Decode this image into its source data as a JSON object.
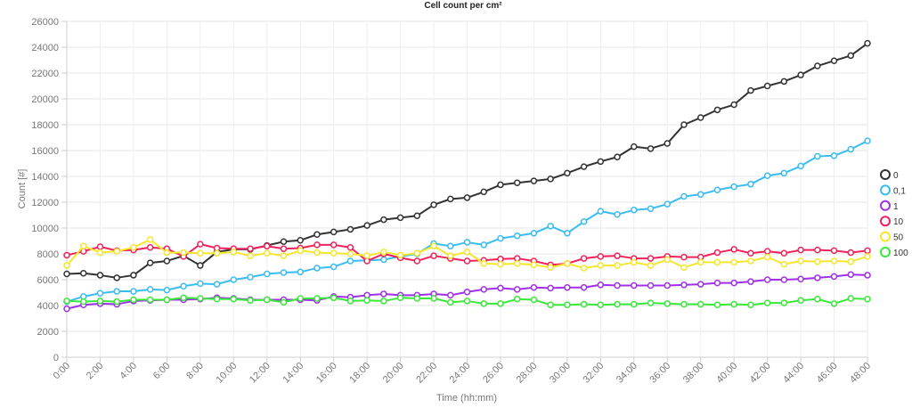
{
  "chart_data": {
    "type": "line",
    "title": "Cell count per cm²",
    "xlabel": "Time (hh:mm)",
    "ylabel": "Count [#]",
    "ylim": [
      0,
      26000
    ],
    "yticks": [
      0,
      2000,
      4000,
      6000,
      8000,
      10000,
      12000,
      14000,
      16000,
      18000,
      20000,
      22000,
      24000,
      26000
    ],
    "ytick_labels": [
      "0",
      "2000",
      "4000",
      "6000",
      "8000",
      "10000",
      "12000",
      "14000",
      "16000",
      "18000",
      "20000",
      "22000",
      "24000",
      "26000"
    ],
    "xlim": [
      0,
      48
    ],
    "xticks": [
      0,
      2,
      4,
      6,
      8,
      10,
      12,
      14,
      16,
      18,
      20,
      22,
      24,
      26,
      28,
      30,
      32,
      34,
      36,
      38,
      40,
      42,
      44,
      46,
      48
    ],
    "xtick_labels": [
      "0:00",
      "2:00",
      "4:00",
      "6:00",
      "8:00",
      "10:00",
      "12:00",
      "14:00",
      "16:00",
      "18:00",
      "20:00",
      "22:00",
      "24:00",
      "26:00",
      "28:00",
      "30:00",
      "32:00",
      "34:00",
      "36:00",
      "38:00",
      "40:00",
      "42:00",
      "44:00",
      "46:00",
      "48:00"
    ],
    "x": [
      0,
      1,
      2,
      3,
      4,
      5,
      6,
      7,
      8,
      9,
      10,
      11,
      12,
      13,
      14,
      15,
      16,
      17,
      18,
      19,
      20,
      21,
      22,
      23,
      24,
      25,
      26,
      27,
      28,
      29,
      30,
      31,
      32,
      33,
      34,
      35,
      36,
      37,
      38,
      39,
      40,
      41,
      42,
      43,
      44,
      45,
      46,
      47,
      48
    ],
    "grid": true,
    "legend_position": "right",
    "series": [
      {
        "name": "0",
        "color": "#333333",
        "values": [
          6450,
          6500,
          6350,
          6150,
          6350,
          7300,
          7450,
          7850,
          7100,
          8150,
          8350,
          8350,
          8650,
          8950,
          9050,
          9500,
          9700,
          9900,
          10200,
          10650,
          10800,
          10950,
          11800,
          12250,
          12350,
          12800,
          13350,
          13500,
          13650,
          13800,
          14250,
          14750,
          15150,
          15500,
          16300,
          16150,
          16550,
          18000,
          18550,
          19150,
          19550,
          20650,
          21000,
          21350,
          21850,
          22550,
          22950,
          23350,
          24300
        ]
      },
      {
        "name": "0,1",
        "color": "#3bbcf0",
        "values": [
          4300,
          4700,
          4950,
          5100,
          5100,
          5250,
          5200,
          5500,
          5700,
          5650,
          6000,
          6200,
          6450,
          6550,
          6600,
          6900,
          7000,
          7450,
          7500,
          7550,
          7800,
          8000,
          8800,
          8600,
          8900,
          8700,
          9200,
          9400,
          9600,
          10150,
          9600,
          10500,
          11300,
          11050,
          11400,
          11500,
          11850,
          12450,
          12600,
          12950,
          13200,
          13400,
          14050,
          14250,
          14800,
          15550,
          15600,
          16100,
          16750
        ]
      },
      {
        "name": "1",
        "color": "#a030e8",
        "values": [
          3750,
          4050,
          4150,
          4100,
          4350,
          4400,
          4450,
          4450,
          4500,
          4600,
          4550,
          4450,
          4450,
          4450,
          4450,
          4400,
          4700,
          4650,
          4800,
          4900,
          4800,
          4800,
          4900,
          4800,
          5050,
          5250,
          5350,
          5250,
          5400,
          5350,
          5400,
          5400,
          5600,
          5550,
          5550,
          5550,
          5550,
          5600,
          5650,
          5750,
          5750,
          5850,
          6000,
          6000,
          6050,
          6150,
          6250,
          6400,
          6350
        ]
      },
      {
        "name": "10",
        "color": "#f0225c",
        "values": [
          7900,
          8200,
          8550,
          8250,
          8300,
          8500,
          8400,
          7800,
          8750,
          8450,
          8400,
          8400,
          8600,
          8400,
          8450,
          8700,
          8700,
          8500,
          7450,
          8000,
          7700,
          7450,
          7850,
          7650,
          7450,
          7500,
          7600,
          7650,
          7450,
          7150,
          7250,
          7650,
          7800,
          7850,
          7650,
          7650,
          7800,
          7750,
          7750,
          8100,
          8350,
          8050,
          8200,
          8050,
          8300,
          8300,
          8250,
          8100,
          8250
        ]
      },
      {
        "name": "50",
        "color": "#f5e62e",
        "values": [
          7100,
          8600,
          8100,
          8200,
          8500,
          9100,
          8100,
          8100,
          8050,
          8050,
          8150,
          7850,
          8050,
          7850,
          8250,
          8100,
          8050,
          8000,
          7850,
          8150,
          7900,
          8050,
          8600,
          7850,
          8150,
          7250,
          7200,
          7250,
          7150,
          6950,
          7250,
          6900,
          7100,
          7100,
          7350,
          7100,
          7550,
          6950,
          7350,
          7350,
          7350,
          7450,
          7750,
          7200,
          7450,
          7400,
          7450,
          7400,
          7800
        ]
      },
      {
        "name": "100",
        "color": "#3ae83a",
        "values": [
          4350,
          4300,
          4350,
          4300,
          4450,
          4450,
          4450,
          4600,
          4550,
          4500,
          4500,
          4400,
          4450,
          4250,
          4550,
          4550,
          4600,
          4350,
          4400,
          4350,
          4600,
          4550,
          4550,
          4250,
          4350,
          4150,
          4150,
          4500,
          4450,
          4050,
          4050,
          4100,
          4050,
          4100,
          4100,
          4200,
          4150,
          4100,
          4100,
          4050,
          4100,
          4050,
          4200,
          4200,
          4400,
          4500,
          4150,
          4550,
          4500
        ]
      }
    ]
  }
}
